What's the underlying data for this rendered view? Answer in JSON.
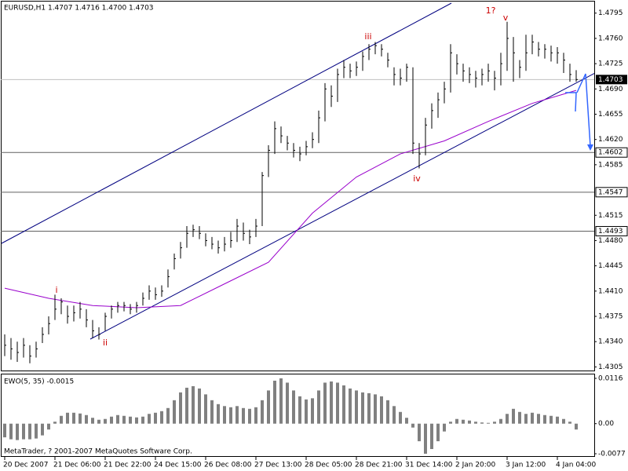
{
  "chart_data": [
    {
      "type": "ohlc",
      "title": "EURUSD,H1  1.4707 1.4716 1.4700 1.4703",
      "color": "#000000",
      "high": [
        1.435,
        1.4345,
        1.434,
        1.4345,
        1.4335,
        1.434,
        1.436,
        1.4375,
        1.4405,
        1.44,
        1.439,
        1.439,
        1.4395,
        1.4385,
        1.437,
        1.436,
        1.438,
        1.439,
        1.4395,
        1.4395,
        1.4392,
        1.4395,
        1.4408,
        1.4418,
        1.4415,
        1.4418,
        1.444,
        1.4462,
        1.4478,
        1.45,
        1.4502,
        1.45,
        1.449,
        1.4485,
        1.448,
        1.4485,
        1.4492,
        1.451,
        1.4505,
        1.4495,
        1.451,
        1.4575,
        1.4612,
        1.4645,
        1.4638,
        1.4625,
        1.4615,
        1.461,
        1.4618,
        1.463,
        1.466,
        1.4698,
        1.4695,
        1.4718,
        1.473,
        1.4725,
        1.4728,
        1.4742,
        1.4752,
        1.4755,
        1.4752,
        1.474,
        1.472,
        1.4718,
        1.4725,
        1.472,
        1.4615,
        1.465,
        1.467,
        1.4685,
        1.47,
        1.4752,
        1.4738,
        1.4725,
        1.472,
        1.4715,
        1.4718,
        1.4725,
        1.4715,
        1.474,
        1.4783,
        1.4762,
        1.473,
        1.4765,
        1.4765,
        1.4755,
        1.4752,
        1.475,
        1.4748,
        1.474,
        1.4725,
        1.4716
      ],
      "low": [
        1.432,
        1.4315,
        1.4312,
        1.4318,
        1.431,
        1.4318,
        1.4338,
        1.435,
        1.437,
        1.4378,
        1.4365,
        1.4368,
        1.4372,
        1.436,
        1.4345,
        1.4343,
        1.4355,
        1.4372,
        1.438,
        1.4382,
        1.4378,
        1.438,
        1.439,
        1.4398,
        1.4398,
        1.4402,
        1.4415,
        1.444,
        1.4455,
        1.447,
        1.4485,
        1.4482,
        1.4472,
        1.4468,
        1.4462,
        1.4465,
        1.447,
        1.4478,
        1.448,
        1.4475,
        1.4485,
        1.45,
        1.4568,
        1.46,
        1.4615,
        1.4605,
        1.4595,
        1.459,
        1.4598,
        1.4608,
        1.4615,
        1.4645,
        1.4665,
        1.4672,
        1.4705,
        1.4705,
        1.4708,
        1.4715,
        1.473,
        1.4738,
        1.4735,
        1.472,
        1.4695,
        1.4695,
        1.47,
        1.46,
        1.458,
        1.4598,
        1.4635,
        1.465,
        1.467,
        1.4685,
        1.471,
        1.47,
        1.4698,
        1.4692,
        1.4695,
        1.47,
        1.4688,
        1.4695,
        1.4715,
        1.47,
        1.4705,
        1.4715,
        1.4738,
        1.4735,
        1.4732,
        1.4728,
        1.4725,
        1.4712,
        1.47,
        1.47
      ],
      "close": [
        1.4335,
        1.433,
        1.4325,
        1.4335,
        1.432,
        1.433,
        1.435,
        1.4365,
        1.4385,
        1.4395,
        1.4375,
        1.438,
        1.4385,
        1.437,
        1.4355,
        1.435,
        1.4375,
        1.4385,
        1.439,
        1.439,
        1.4385,
        1.439,
        1.44,
        1.441,
        1.4405,
        1.441,
        1.443,
        1.4455,
        1.447,
        1.449,
        1.4495,
        1.449,
        1.448,
        1.4475,
        1.447,
        1.4475,
        1.448,
        1.45,
        1.449,
        1.4485,
        1.45,
        1.457,
        1.4605,
        1.4635,
        1.4625,
        1.4615,
        1.4605,
        1.46,
        1.461,
        1.462,
        1.465,
        1.469,
        1.468,
        1.471,
        1.472,
        1.4715,
        1.472,
        1.4735,
        1.4745,
        1.475,
        1.4745,
        1.473,
        1.471,
        1.4705,
        1.472,
        1.4615,
        1.46,
        1.464,
        1.466,
        1.4675,
        1.469,
        1.474,
        1.4725,
        1.4715,
        1.471,
        1.4705,
        1.471,
        1.4715,
        1.4705,
        1.4725,
        1.476,
        1.474,
        1.472,
        1.474,
        1.4755,
        1.4745,
        1.4745,
        1.474,
        1.474,
        1.473,
        1.471,
        1.4703
      ],
      "ma_values": [
        1.4414,
        1.44,
        1.439,
        1.4387,
        1.439,
        1.442,
        1.445,
        1.4518,
        1.4568,
        1.46,
        1.4618,
        1.4645,
        1.467,
        1.4688
      ],
      "ma_color": "#9900cc",
      "bid": 1.4703,
      "levels": [
        1.4602,
        1.4547,
        1.4493
      ],
      "annotations": [
        "i",
        "ii",
        "iii",
        "iv",
        "1?",
        "v"
      ],
      "annotation_color": "#cc0000",
      "ylim": [
        1.43,
        1.4811
      ],
      "yticks": [
        1.4795,
        {
          "value": 1.476,
          "label": "1.4760"
        },
        1.4725,
        {
          "value": 1.469,
          "label": "1.4690"
        },
        1.4655,
        {
          "value": 1.462,
          "label": "1.4620"
        },
        1.4585,
        1.4515,
        {
          "value": 1.448,
          "label": "1.4480"
        },
        1.4445,
        {
          "value": 1.441,
          "label": "1.4410"
        },
        1.4375,
        {
          "value": 1.434,
          "label": "1.4340"
        },
        1.4305
      ],
      "time_labels": [
        "20 Dec 2007",
        "21 Dec 06:00",
        "21 Dec 22:00",
        "24 Dec 15:00",
        "26 Dec 08:00",
        "27 Dec 13:00",
        "28 Dec 05:00",
        "28 Dec 21:00",
        "31 Dec 14:00",
        "2 Jan 20:00",
        "3 Jan 12:00",
        "4 Jan 04:00"
      ]
    },
    {
      "type": "histogram",
      "title": "EWO(5, 35) -0.0015",
      "color": "#808080",
      "values": [
        -0.0035,
        -0.004,
        -0.0042,
        -0.004,
        -0.004,
        -0.0038,
        -0.003,
        -0.0015,
        0.0005,
        0.002,
        0.0028,
        0.0028,
        0.0026,
        0.0022,
        0.0015,
        0.001,
        0.0012,
        0.0018,
        0.0022,
        0.002,
        0.0018,
        0.0016,
        0.0018,
        0.0025,
        0.0028,
        0.0032,
        0.004,
        0.006,
        0.008,
        0.0092,
        0.0096,
        0.009,
        0.0075,
        0.006,
        0.005,
        0.0045,
        0.0042,
        0.0045,
        0.004,
        0.0038,
        0.0042,
        0.006,
        0.0085,
        0.011,
        0.0116,
        0.0105,
        0.0085,
        0.007,
        0.0062,
        0.0065,
        0.0085,
        0.0105,
        0.0108,
        0.0105,
        0.0098,
        0.009,
        0.0085,
        0.008,
        0.0078,
        0.0075,
        0.007,
        0.006,
        0.0045,
        0.003,
        0.0015,
        -0.001,
        -0.0045,
        -0.0077,
        -0.0065,
        -0.0045,
        -0.002,
        0.0005,
        0.0012,
        0.001,
        0.0008,
        0.0005,
        0.0003,
        0.0002,
        0.0005,
        0.0012,
        0.0025,
        0.0038,
        0.003,
        0.0025,
        0.0028,
        0.0025,
        0.0022,
        0.002,
        0.0018,
        0.0012,
        0.0005,
        -0.0015
      ],
      "ylim": [
        -0.0083,
        0.0126
      ],
      "yticks": [
        0.0116,
        {
          "value": 0,
          "label": "0.00"
        },
        -0.0077
      ]
    }
  ],
  "footer": "MetaTrader, ? 2001-2007 MetaQuotes Software Corp."
}
